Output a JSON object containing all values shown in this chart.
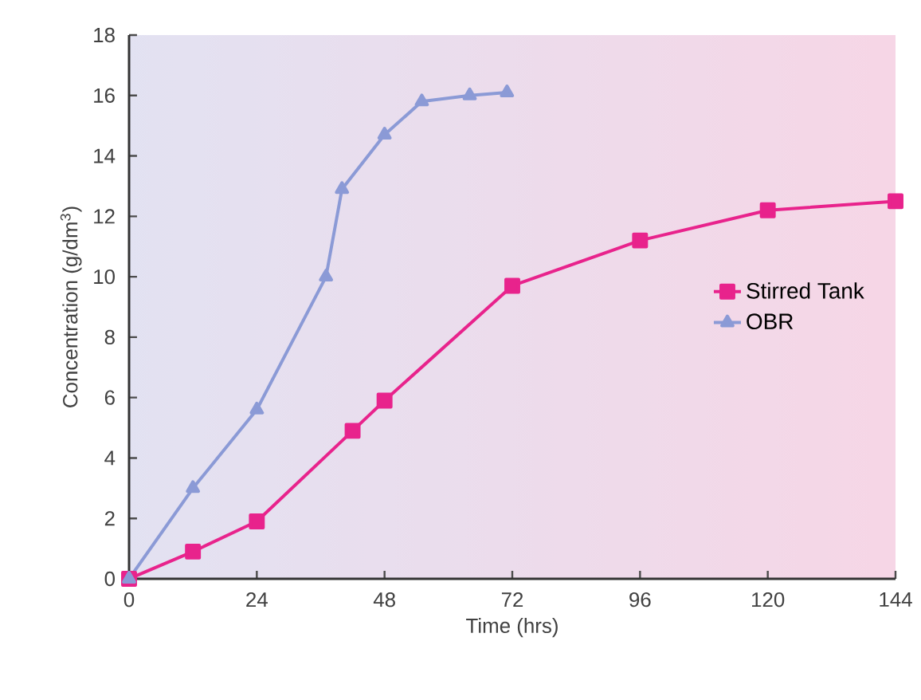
{
  "chart_data": {
    "type": "line",
    "xlabel": "Time (hrs)",
    "ylabel": "Concentration (g/dm$^{3}$)",
    "xlim": [
      0,
      144
    ],
    "xticks": [
      0,
      24,
      48,
      72,
      96,
      120,
      144
    ],
    "ylim": [
      0,
      18
    ],
    "yticks": [
      0,
      2,
      4,
      6,
      8,
      10,
      12,
      14,
      16,
      18
    ],
    "grid": false,
    "legend": "right",
    "line_style": "solid",
    "series": [
      {
        "name": "Stirred Tank",
        "color": "#e8238c",
        "marker": "square",
        "x": [
          0,
          12,
          24,
          42,
          48,
          72,
          96,
          120,
          144
        ],
        "values": [
          0,
          0.9,
          1.9,
          4.9,
          5.9,
          9.7,
          11.2,
          12.2,
          12.5
        ]
      },
      {
        "name": "OBR",
        "color": "#8b9ad6",
        "marker": "triangle",
        "x": [
          0,
          12,
          24,
          37,
          40,
          48,
          55,
          64,
          71
        ],
        "values": [
          0,
          3,
          5.6,
          10,
          12.9,
          14.7,
          15.8,
          16,
          16.1
        ]
      }
    ]
  }
}
